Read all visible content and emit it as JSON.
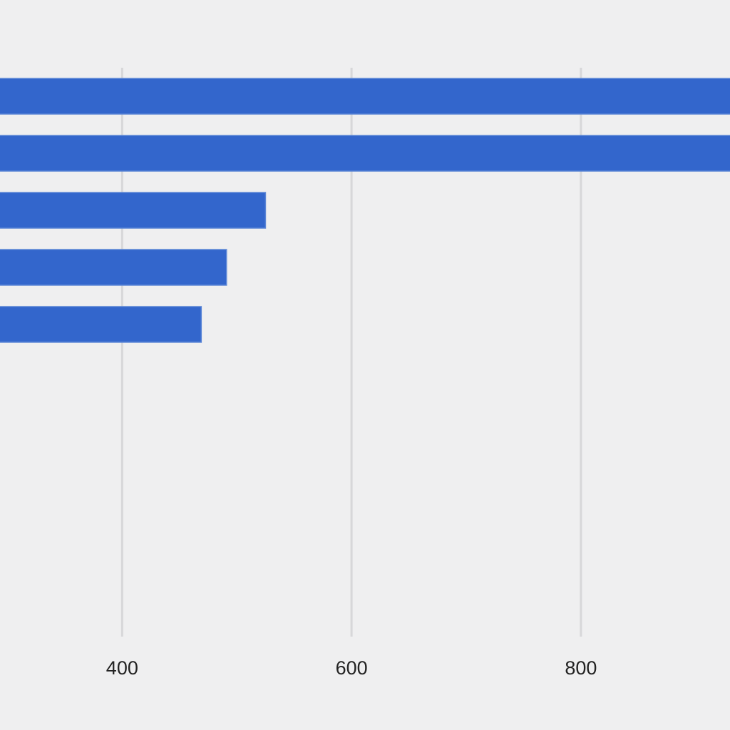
{
  "chart_data": {
    "type": "bar",
    "orientation": "horizontal",
    "title": "",
    "xlabel": "",
    "ylabel": "",
    "xlim": [
      293.5,
      930
    ],
    "x_ticks": [
      400,
      600,
      800
    ],
    "x_tick_labels": [
      "400",
      "600",
      "800"
    ],
    "grid": true,
    "legend": "none",
    "series": [
      {
        "values": [
          1000,
          1000,
          525,
          491,
          469
        ],
        "color": "#3366cc"
      }
    ]
  }
}
